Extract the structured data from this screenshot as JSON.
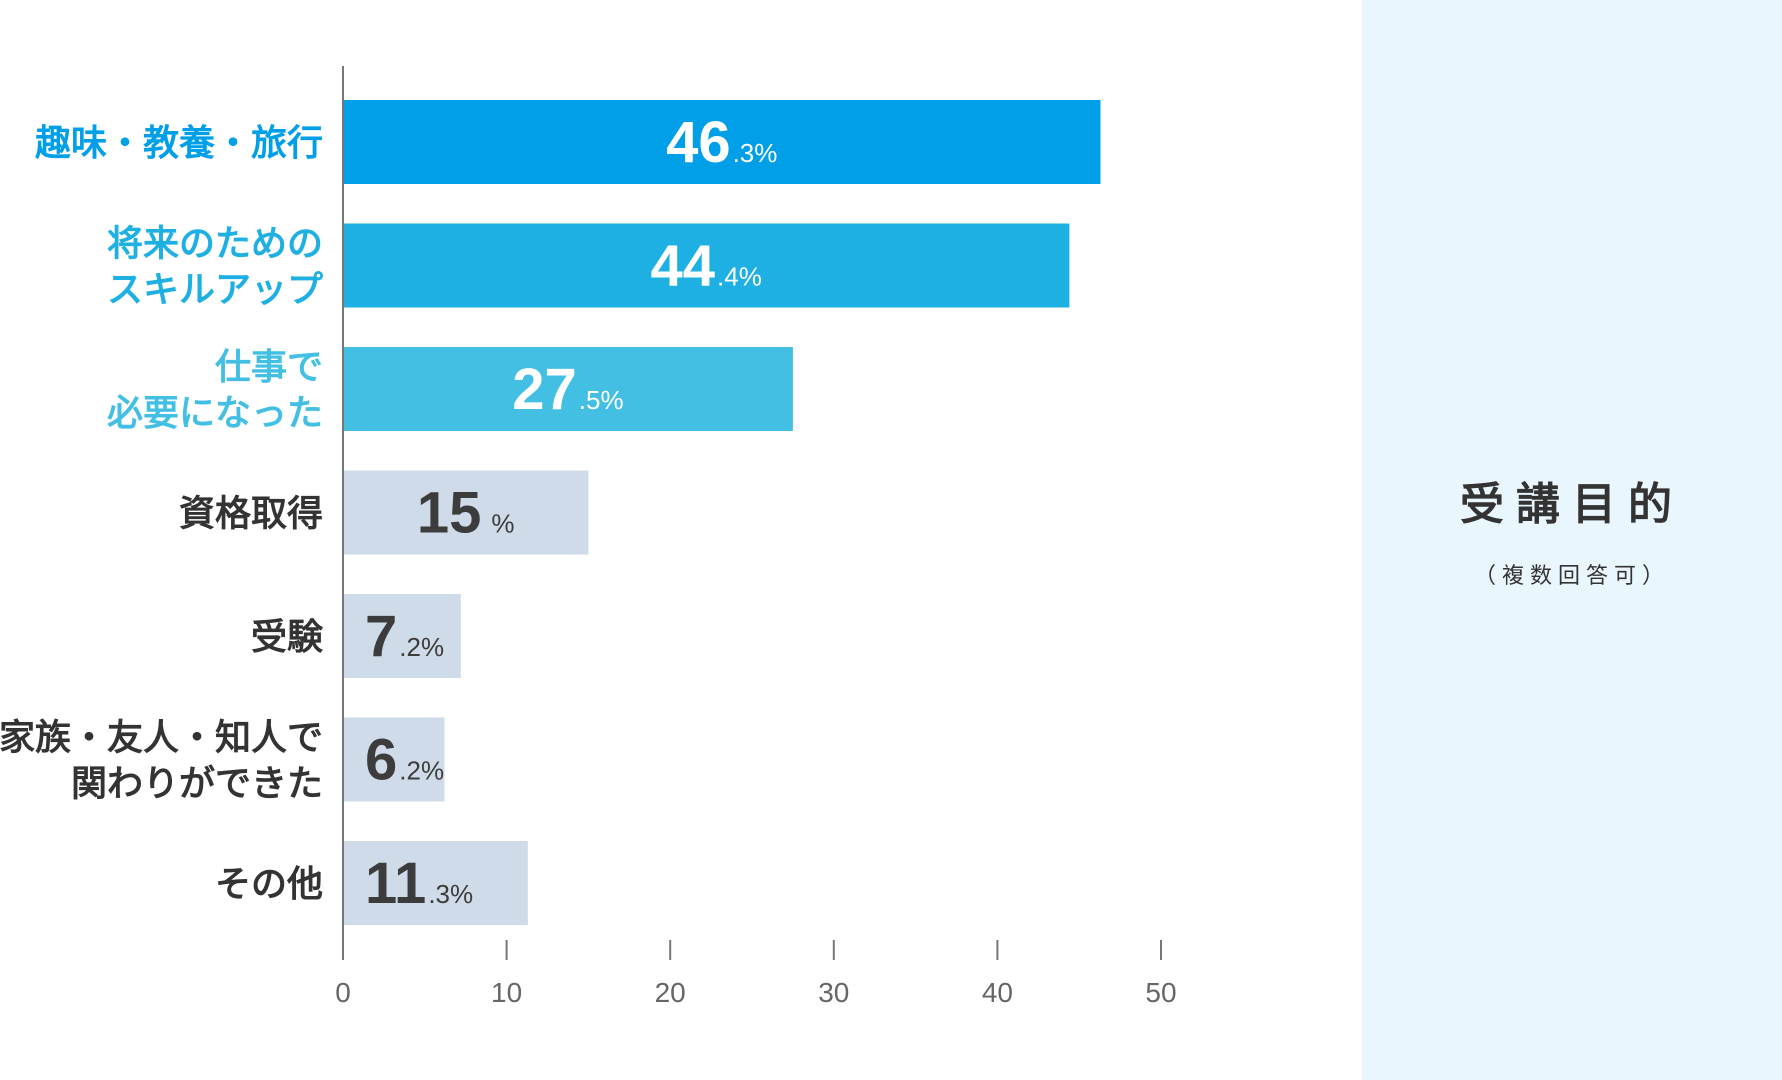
{
  "chart_data": {
    "type": "bar",
    "orientation": "horizontal",
    "categories": [
      [
        "趣味・教養・旅行"
      ],
      [
        "将来のための",
        "スキルアップ"
      ],
      [
        "仕事で",
        "必要になった"
      ],
      [
        "資格取得"
      ],
      [
        "受験"
      ],
      [
        "家族・友人・知人で",
        "関わりができた"
      ],
      [
        "その他"
      ]
    ],
    "values": [
      46.3,
      44.4,
      27.5,
      15,
      7.2,
      6.2,
      11.3
    ],
    "value_labels": [
      {
        "int": "46",
        "dec": ".3%"
      },
      {
        "int": "44",
        "dec": ".4%"
      },
      {
        "int": "27",
        "dec": ".5%"
      },
      {
        "int": "15",
        "dec": "%"
      },
      {
        "int": "7",
        "dec": ".2%"
      },
      {
        "int": "6",
        "dec": ".2%"
      },
      {
        "int": "11",
        "dec": ".3%"
      }
    ],
    "bar_colors": [
      "#009fe8",
      "#1eafe3",
      "#43bfe4",
      "#cfdbe8",
      "#cfdbe8",
      "#cfdbe8",
      "#cfdbe8"
    ],
    "label_colors": [
      "#009fe8",
      "#1eafe3",
      "#43bfe4",
      "#333333",
      "#333333",
      "#333333",
      "#333333"
    ],
    "value_colors": [
      "#ffffff",
      "#ffffff",
      "#ffffff",
      "#3c3c3c",
      "#3c3c3c",
      "#3c3c3c",
      "#3c3c3c"
    ],
    "xlim": [
      0,
      50
    ],
    "xticks": [
      0,
      10,
      20,
      30,
      40,
      50
    ],
    "grid": false,
    "title": "受講目的",
    "subtitle": "（複数回答可）"
  }
}
